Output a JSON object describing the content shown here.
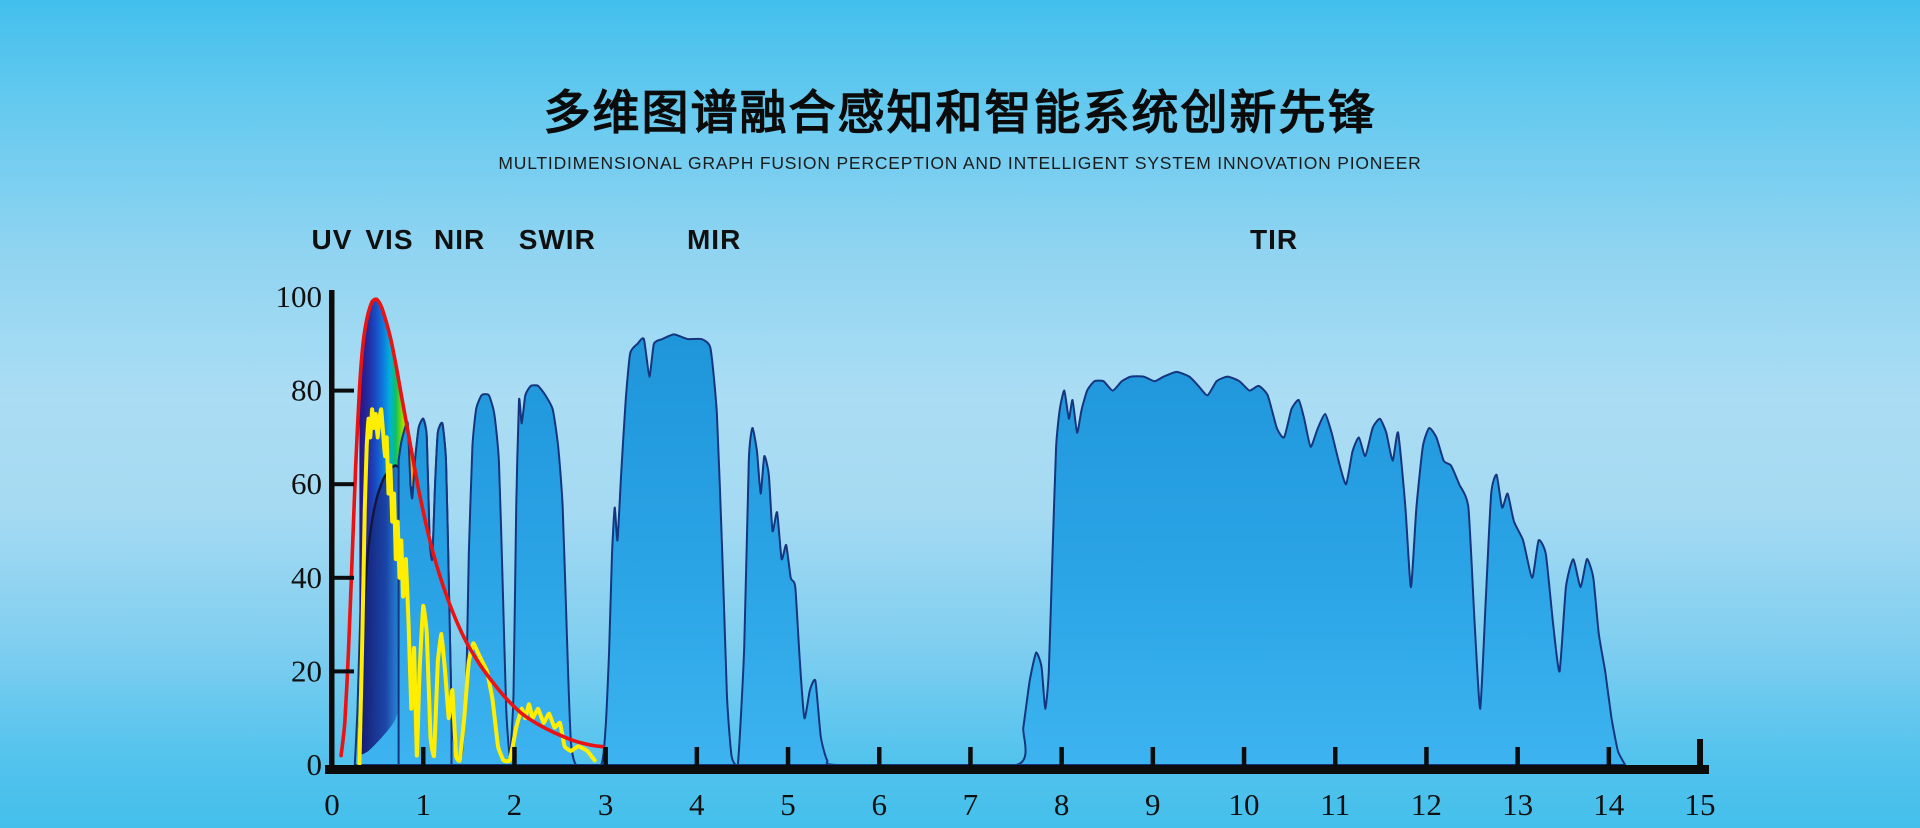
{
  "header": {
    "title": "多维图谱融合感知和智能系统创新先锋",
    "subtitle": "MULTIDIMENSIONAL GRAPH FUSION PERCEPTION AND INTELLIGENT SYSTEM INNOVATION PIONEER"
  },
  "chart_data": {
    "type": "area",
    "title": "",
    "xlabel": "",
    "ylabel": "",
    "x_range": [
      0,
      15
    ],
    "y_range": [
      0,
      100
    ],
    "x_ticks": [
      0,
      1,
      2,
      3,
      4,
      5,
      6,
      7,
      8,
      9,
      10,
      11,
      12,
      13,
      14,
      15
    ],
    "y_ticks": [
      0,
      20,
      40,
      60,
      80,
      100
    ],
    "grid": false,
    "legend": "none",
    "bands": [
      {
        "label": "UV",
        "x": 0.0
      },
      {
        "label": "VIS",
        "x": 0.63
      },
      {
        "label": "NIR",
        "x": 1.4
      },
      {
        "label": "SWIR",
        "x": 2.47
      },
      {
        "label": "MIR",
        "x": 4.19
      },
      {
        "label": "TIR",
        "x": 10.33
      }
    ],
    "colors": {
      "area_fill_top": "#1f95da",
      "area_fill_bottom": "#3db4f0",
      "area_outline": "#15357e",
      "solar_curve": "#ffee00",
      "planck_curve": "#ea1212",
      "envelope_curve": "#10173a",
      "axis": "#0c0c0c",
      "text": "#101010"
    },
    "rainbow": {
      "x_start": 0.3,
      "x_end": 0.97,
      "stops": [
        [
          0,
          "#2a1482"
        ],
        [
          0.14,
          "#232a9e"
        ],
        [
          0.28,
          "#1850c8"
        ],
        [
          0.4,
          "#0c7fdd"
        ],
        [
          0.5,
          "#00b0dc"
        ],
        [
          0.6,
          "#0fc25e"
        ],
        [
          0.7,
          "#8edc00"
        ],
        [
          0.79,
          "#ffe200"
        ],
        [
          0.88,
          "#ff9100"
        ],
        [
          0.97,
          "#ee1111"
        ]
      ]
    },
    "dark_under_bottom": [
      [
        0.3,
        2
      ],
      [
        0.4,
        3
      ],
      [
        0.55,
        6
      ],
      [
        0.7,
        10
      ],
      [
        0.8,
        18
      ],
      [
        0.9,
        38
      ]
    ],
    "spikes_overlay_range": [
      0.72,
      1.32
    ],
    "series": [
      {
        "name": "atmospheric_transmission",
        "role": "blue-area",
        "points": [
          [
            0.25,
            0
          ],
          [
            0.28,
            12
          ],
          [
            0.31,
            32
          ],
          [
            0.35,
            47
          ],
          [
            0.4,
            54
          ],
          [
            0.46,
            58
          ],
          [
            0.52,
            61
          ],
          [
            0.6,
            63
          ],
          [
            0.68,
            64
          ],
          [
            0.73,
            65
          ],
          [
            0.76,
            69
          ],
          [
            0.8,
            72
          ],
          [
            0.83,
            73
          ],
          [
            0.86,
            60
          ],
          [
            0.88,
            57
          ],
          [
            0.91,
            65
          ],
          [
            0.95,
            72
          ],
          [
            1.0,
            74
          ],
          [
            1.04,
            70
          ],
          [
            1.07,
            48
          ],
          [
            1.1,
            44
          ],
          [
            1.13,
            60
          ],
          [
            1.16,
            71
          ],
          [
            1.21,
            73
          ],
          [
            1.25,
            65
          ],
          [
            1.28,
            40
          ],
          [
            1.31,
            12
          ],
          [
            1.35,
            3
          ],
          [
            1.42,
            2
          ],
          [
            1.47,
            15
          ],
          [
            1.5,
            45
          ],
          [
            1.54,
            68
          ],
          [
            1.58,
            76
          ],
          [
            1.64,
            79
          ],
          [
            1.72,
            79
          ],
          [
            1.78,
            75
          ],
          [
            1.83,
            65
          ],
          [
            1.87,
            40
          ],
          [
            1.91,
            12
          ],
          [
            1.95,
            2
          ],
          [
            1.99,
            15
          ],
          [
            2.02,
            55
          ],
          [
            2.05,
            78
          ],
          [
            2.08,
            73
          ],
          [
            2.12,
            79
          ],
          [
            2.18,
            81
          ],
          [
            2.26,
            81
          ],
          [
            2.34,
            79
          ],
          [
            2.42,
            76
          ],
          [
            2.48,
            68
          ],
          [
            2.53,
            55
          ],
          [
            2.58,
            25
          ],
          [
            2.62,
            5
          ],
          [
            2.68,
            0
          ],
          [
            2.95,
            0
          ],
          [
            3.0,
            8
          ],
          [
            3.04,
            25
          ],
          [
            3.07,
            45
          ],
          [
            3.1,
            55
          ],
          [
            3.13,
            48
          ],
          [
            3.17,
            62
          ],
          [
            3.22,
            78
          ],
          [
            3.27,
            88
          ],
          [
            3.35,
            90
          ],
          [
            3.42,
            91
          ],
          [
            3.48,
            83
          ],
          [
            3.53,
            90
          ],
          [
            3.62,
            91
          ],
          [
            3.75,
            92
          ],
          [
            3.9,
            91
          ],
          [
            4.05,
            91
          ],
          [
            4.15,
            89
          ],
          [
            4.22,
            75
          ],
          [
            4.28,
            45
          ],
          [
            4.33,
            15
          ],
          [
            4.38,
            2
          ],
          [
            4.45,
            0
          ],
          [
            4.52,
            25
          ],
          [
            4.57,
            65
          ],
          [
            4.61,
            72
          ],
          [
            4.66,
            67
          ],
          [
            4.7,
            58
          ],
          [
            4.74,
            66
          ],
          [
            4.79,
            62
          ],
          [
            4.83,
            50
          ],
          [
            4.88,
            54
          ],
          [
            4.93,
            44
          ],
          [
            4.98,
            47
          ],
          [
            5.03,
            40
          ],
          [
            5.08,
            38
          ],
          [
            5.13,
            22
          ],
          [
            5.18,
            10
          ],
          [
            5.24,
            16
          ],
          [
            5.3,
            18
          ],
          [
            5.36,
            6
          ],
          [
            5.43,
            1
          ],
          [
            5.55,
            0
          ],
          [
            7.5,
            0
          ],
          [
            7.58,
            8
          ],
          [
            7.65,
            18
          ],
          [
            7.72,
            24
          ],
          [
            7.78,
            21
          ],
          [
            7.82,
            12
          ],
          [
            7.86,
            20
          ],
          [
            7.9,
            45
          ],
          [
            7.94,
            68
          ],
          [
            7.98,
            76
          ],
          [
            8.03,
            80
          ],
          [
            8.08,
            74
          ],
          [
            8.12,
            78
          ],
          [
            8.17,
            71
          ],
          [
            8.22,
            76
          ],
          [
            8.28,
            80
          ],
          [
            8.36,
            82
          ],
          [
            8.46,
            82
          ],
          [
            8.56,
            80
          ],
          [
            8.66,
            82
          ],
          [
            8.76,
            83
          ],
          [
            8.9,
            83
          ],
          [
            9.02,
            82
          ],
          [
            9.12,
            83
          ],
          [
            9.26,
            84
          ],
          [
            9.4,
            83
          ],
          [
            9.5,
            81
          ],
          [
            9.6,
            79
          ],
          [
            9.7,
            82
          ],
          [
            9.82,
            83
          ],
          [
            9.95,
            82
          ],
          [
            10.06,
            80
          ],
          [
            10.16,
            81
          ],
          [
            10.26,
            79
          ],
          [
            10.36,
            72
          ],
          [
            10.44,
            70
          ],
          [
            10.52,
            76
          ],
          [
            10.6,
            78
          ],
          [
            10.66,
            74
          ],
          [
            10.73,
            68
          ],
          [
            10.81,
            72
          ],
          [
            10.89,
            75
          ],
          [
            10.96,
            71
          ],
          [
            11.05,
            64
          ],
          [
            11.12,
            60
          ],
          [
            11.19,
            67
          ],
          [
            11.26,
            70
          ],
          [
            11.33,
            66
          ],
          [
            11.41,
            72
          ],
          [
            11.49,
            74
          ],
          [
            11.56,
            71
          ],
          [
            11.63,
            65
          ],
          [
            11.69,
            71
          ],
          [
            11.77,
            55
          ],
          [
            11.83,
            38
          ],
          [
            11.89,
            55
          ],
          [
            11.96,
            68
          ],
          [
            12.03,
            72
          ],
          [
            12.11,
            70
          ],
          [
            12.19,
            65
          ],
          [
            12.27,
            64
          ],
          [
            12.36,
            60
          ],
          [
            12.46,
            55
          ],
          [
            12.53,
            30
          ],
          [
            12.59,
            12
          ],
          [
            12.65,
            35
          ],
          [
            12.71,
            58
          ],
          [
            12.77,
            62
          ],
          [
            12.83,
            55
          ],
          [
            12.89,
            58
          ],
          [
            12.96,
            52
          ],
          [
            13.06,
            48
          ],
          [
            13.16,
            40
          ],
          [
            13.23,
            48
          ],
          [
            13.31,
            45
          ],
          [
            13.39,
            30
          ],
          [
            13.46,
            20
          ],
          [
            13.53,
            38
          ],
          [
            13.61,
            44
          ],
          [
            13.69,
            38
          ],
          [
            13.76,
            44
          ],
          [
            13.83,
            40
          ],
          [
            13.89,
            28
          ],
          [
            13.96,
            20
          ],
          [
            14.03,
            10
          ],
          [
            14.1,
            3
          ],
          [
            14.18,
            0
          ]
        ]
      },
      {
        "name": "solar_irradiance_ground",
        "role": "yellow-line",
        "points": [
          [
            0.3,
            0
          ],
          [
            0.33,
            25
          ],
          [
            0.36,
            55
          ],
          [
            0.38,
            68
          ],
          [
            0.4,
            74
          ],
          [
            0.42,
            70
          ],
          [
            0.44,
            76
          ],
          [
            0.46,
            72
          ],
          [
            0.48,
            75
          ],
          [
            0.5,
            70
          ],
          [
            0.52,
            74
          ],
          [
            0.54,
            76
          ],
          [
            0.56,
            71
          ],
          [
            0.58,
            66
          ],
          [
            0.6,
            70
          ],
          [
            0.62,
            58
          ],
          [
            0.64,
            64
          ],
          [
            0.66,
            52
          ],
          [
            0.68,
            58
          ],
          [
            0.7,
            44
          ],
          [
            0.72,
            52
          ],
          [
            0.74,
            40
          ],
          [
            0.76,
            48
          ],
          [
            0.78,
            36
          ],
          [
            0.81,
            44
          ],
          [
            0.84,
            30
          ],
          [
            0.87,
            12
          ],
          [
            0.9,
            25
          ],
          [
            0.93,
            2
          ],
          [
            0.96,
            20
          ],
          [
            1.0,
            34
          ],
          [
            1.04,
            28
          ],
          [
            1.08,
            6
          ],
          [
            1.12,
            2
          ],
          [
            1.16,
            22
          ],
          [
            1.2,
            28
          ],
          [
            1.24,
            20
          ],
          [
            1.28,
            10
          ],
          [
            1.32,
            16
          ],
          [
            1.36,
            2
          ],
          [
            1.4,
            1
          ],
          [
            1.45,
            10
          ],
          [
            1.5,
            22
          ],
          [
            1.55,
            26
          ],
          [
            1.6,
            24
          ],
          [
            1.65,
            22
          ],
          [
            1.7,
            20
          ],
          [
            1.76,
            14
          ],
          [
            1.82,
            4
          ],
          [
            1.88,
            1
          ],
          [
            1.95,
            1
          ],
          [
            2.02,
            8
          ],
          [
            2.08,
            12
          ],
          [
            2.12,
            10
          ],
          [
            2.16,
            13
          ],
          [
            2.2,
            10
          ],
          [
            2.26,
            12
          ],
          [
            2.32,
            9
          ],
          [
            2.38,
            11
          ],
          [
            2.44,
            8
          ],
          [
            2.5,
            9
          ],
          [
            2.55,
            4
          ],
          [
            2.62,
            3
          ],
          [
            2.7,
            4
          ],
          [
            2.8,
            3
          ],
          [
            2.88,
            1
          ]
        ]
      },
      {
        "name": "blackbody_solar_spectrum",
        "role": "red-line",
        "points": [
          [
            0.1,
            2
          ],
          [
            0.14,
            9
          ],
          [
            0.18,
            24
          ],
          [
            0.22,
            44
          ],
          [
            0.26,
            64
          ],
          [
            0.3,
            80
          ],
          [
            0.34,
            90
          ],
          [
            0.39,
            96
          ],
          [
            0.44,
            99
          ],
          [
            0.49,
            99.5
          ],
          [
            0.54,
            98
          ],
          [
            0.59,
            95
          ],
          [
            0.65,
            90.5
          ],
          [
            0.71,
            84.5
          ],
          [
            0.77,
            78
          ],
          [
            0.84,
            70.5
          ],
          [
            0.91,
            63
          ],
          [
            0.95,
            58.8
          ],
          [
            0.98,
            56
          ],
          [
            1.06,
            49
          ],
          [
            1.15,
            42.5
          ],
          [
            1.25,
            36.5
          ],
          [
            1.36,
            31
          ],
          [
            1.48,
            26
          ],
          [
            1.62,
            21.5
          ],
          [
            1.77,
            17.5
          ],
          [
            1.92,
            14
          ],
          [
            2.08,
            11
          ],
          [
            2.25,
            8.8
          ],
          [
            2.45,
            6.8
          ],
          [
            2.65,
            5.2
          ],
          [
            2.85,
            4.2
          ],
          [
            2.97,
            3.9
          ]
        ]
      },
      {
        "name": "visible_envelope_arc",
        "role": "black-arc",
        "points": [
          [
            0.3,
            8
          ],
          [
            0.34,
            28
          ],
          [
            0.38,
            42
          ],
          [
            0.43,
            51
          ],
          [
            0.49,
            57
          ],
          [
            0.56,
            61
          ],
          [
            0.63,
            63
          ],
          [
            0.7,
            64
          ],
          [
            0.77,
            62.5
          ],
          [
            0.84,
            60
          ],
          [
            0.9,
            58.5
          ],
          [
            0.95,
            58
          ]
        ]
      }
    ]
  }
}
